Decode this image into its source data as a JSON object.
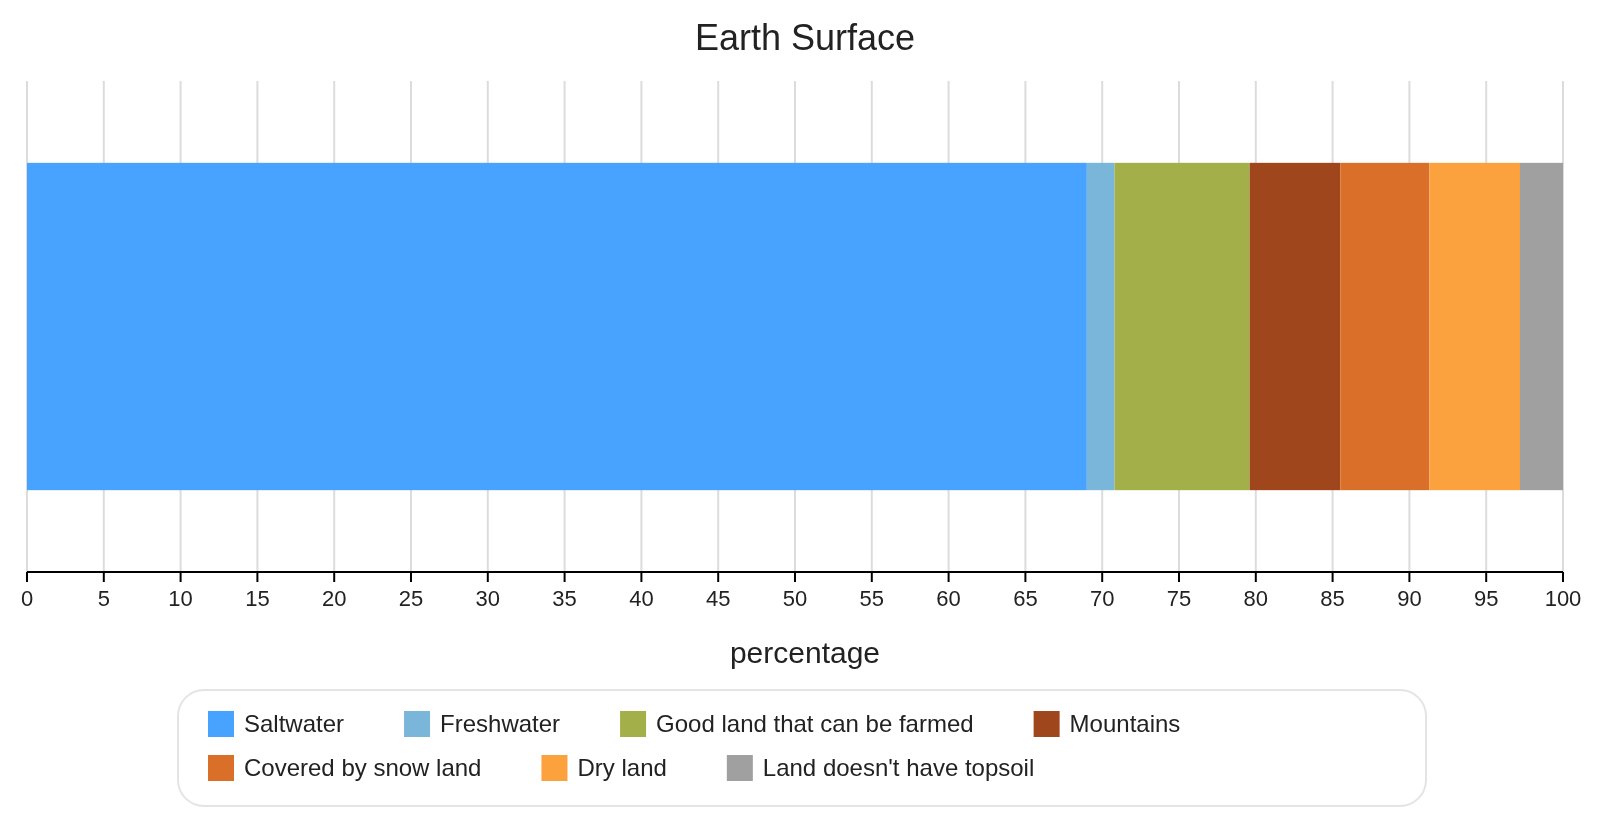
{
  "chart_data": {
    "type": "bar",
    "title": "Earth Surface",
    "xlabel": "percentage",
    "orientation": "horizontal",
    "stacked": true,
    "categories": [
      null
    ],
    "series": [
      {
        "name": "Saltwater",
        "color": "#47a3ff",
        "values": [
          69
        ]
      },
      {
        "name": "Freshwater",
        "color": "#7ab6d9",
        "values": [
          1.8
        ]
      },
      {
        "name": "Good land that can be farmed",
        "color": "#a3b04a",
        "values": [
          8.8
        ]
      },
      {
        "name": "Mountains",
        "color": "#a0461c",
        "values": [
          5.9
        ]
      },
      {
        "name": "Covered by snow land",
        "color": "#d96f28",
        "values": [
          5.8
        ]
      },
      {
        "name": "Dry land",
        "color": "#fba23e",
        "values": [
          5.9
        ]
      },
      {
        "name": "Land doesn't have topsoil",
        "color": "#a0a0a0",
        "values": [
          2.8
        ]
      }
    ],
    "xlim": [
      0,
      100
    ],
    "xticks": [
      0,
      5,
      10,
      15,
      20,
      25,
      30,
      35,
      40,
      45,
      50,
      55,
      60,
      65,
      70,
      75,
      80,
      85,
      90,
      95,
      100
    ],
    "grid": "x",
    "legend": "bottom"
  }
}
